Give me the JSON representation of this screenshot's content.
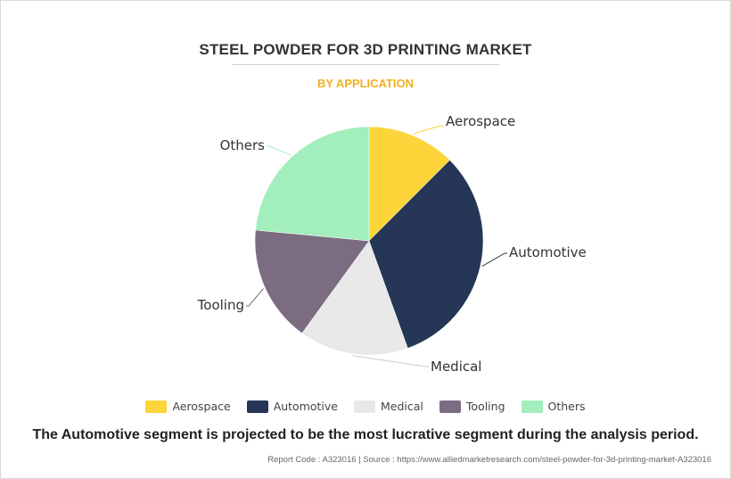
{
  "title": "STEEL POWDER FOR 3D PRINTING MARKET",
  "subtitle": "BY APPLICATION",
  "chart_data": {
    "type": "pie",
    "categories": [
      "Aerospace",
      "Automotive",
      "Medical",
      "Tooling",
      "Others"
    ],
    "values": [
      12.5,
      32,
      15.5,
      16.5,
      23.5
    ],
    "colors": [
      "#fdd43a",
      "#253656",
      "#e8e8e8",
      "#7b6c82",
      "#a2eebc"
    ],
    "legend": "bottom-center",
    "labels_on_chart": [
      "Aerospace",
      "Automotive",
      "Medical",
      "Tooling",
      "Others"
    ]
  },
  "caption": "The Automotive segment is projected to be the most lucrative segment during the analysis period.",
  "source": "Report Code : A323016  |  Source : https://www.alliedmarketresearch.com/steel-powder-for-3d-printing-market-A323016"
}
